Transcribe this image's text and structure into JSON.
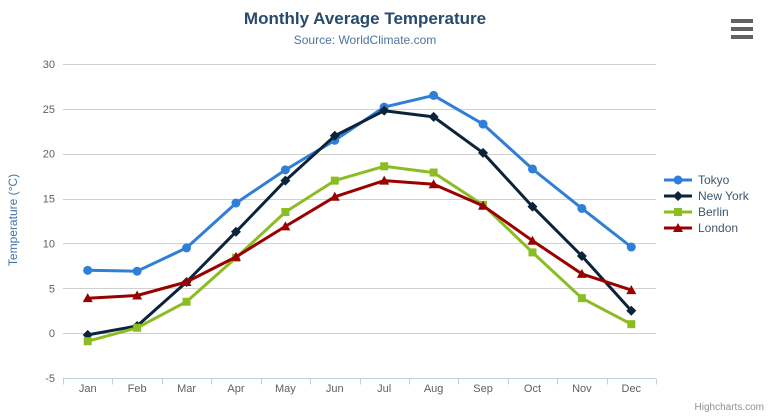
{
  "credit": "Highcharts.com",
  "icons": {
    "context_menu": "hamburger-menu-icon"
  },
  "colors": {
    "title": "#274b6d",
    "subtitle": "#4d759e",
    "axis_labels": "#606060",
    "grid": "#d0d0d0",
    "axis_line": "#c0d0e0",
    "y_axis_title": "#4572a7",
    "legend_text": "#3e576f",
    "credit": "#909090",
    "menu_icon": "#616161",
    "background": "#ffffff"
  },
  "chart_data": {
    "type": "line",
    "title": "Monthly Average Temperature",
    "subtitle": "Source: WorldClimate.com",
    "xlabel": "",
    "ylabel": "Temperature (°C)",
    "ylim": [
      -5,
      30
    ],
    "y_ticks": [
      -5,
      0,
      5,
      10,
      15,
      20,
      25,
      30
    ],
    "grid": true,
    "legend_position": "right",
    "categories": [
      "Jan",
      "Feb",
      "Mar",
      "Apr",
      "May",
      "Jun",
      "Jul",
      "Aug",
      "Sep",
      "Oct",
      "Nov",
      "Dec"
    ],
    "series": [
      {
        "name": "Tokyo",
        "color": "#2f7ed8",
        "marker": "circle",
        "values": [
          7.0,
          6.9,
          9.5,
          14.5,
          18.2,
          21.5,
          25.2,
          26.5,
          23.3,
          18.3,
          13.9,
          9.6
        ]
      },
      {
        "name": "New York",
        "color": "#0d233a",
        "marker": "diamond",
        "values": [
          -0.2,
          0.8,
          5.7,
          11.3,
          17.0,
          22.0,
          24.8,
          24.1,
          20.1,
          14.1,
          8.6,
          2.5
        ]
      },
      {
        "name": "Berlin",
        "color": "#8bbc21",
        "marker": "square",
        "values": [
          -0.9,
          0.6,
          3.5,
          8.4,
          13.5,
          17.0,
          18.6,
          17.9,
          14.3,
          9.0,
          3.9,
          1.0
        ]
      },
      {
        "name": "London",
        "color": "#9a0000",
        "marker": "triangle",
        "values": [
          3.9,
          4.2,
          5.7,
          8.5,
          11.9,
          15.2,
          17.0,
          16.6,
          14.2,
          10.3,
          6.6,
          4.8
        ]
      }
    ]
  }
}
